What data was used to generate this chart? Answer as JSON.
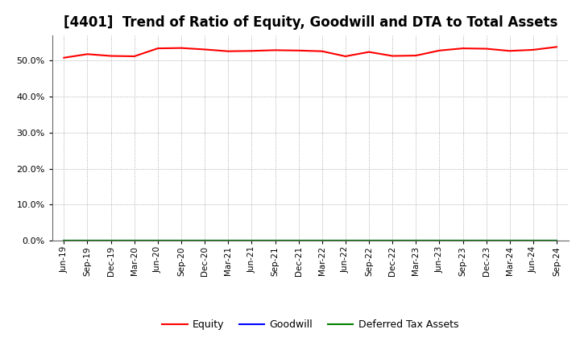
{
  "title": "[4401]  Trend of Ratio of Equity, Goodwill and DTA to Total Assets",
  "x_labels": [
    "Jun-19",
    "Sep-19",
    "Dec-19",
    "Mar-20",
    "Jun-20",
    "Sep-20",
    "Dec-20",
    "Mar-21",
    "Jun-21",
    "Sep-21",
    "Dec-21",
    "Mar-22",
    "Jun-22",
    "Sep-22",
    "Dec-22",
    "Mar-23",
    "Jun-23",
    "Sep-23",
    "Dec-23",
    "Mar-24",
    "Jun-24",
    "Sep-24"
  ],
  "equity": [
    50.8,
    51.8,
    51.3,
    51.2,
    53.4,
    53.5,
    53.1,
    52.6,
    52.7,
    52.9,
    52.8,
    52.6,
    51.2,
    52.4,
    51.3,
    51.4,
    52.8,
    53.4,
    53.3,
    52.7,
    53.0,
    53.8
  ],
  "goodwill": [
    0.0,
    0.0,
    0.0,
    0.0,
    0.0,
    0.0,
    0.0,
    0.0,
    0.0,
    0.0,
    0.0,
    0.0,
    0.0,
    0.0,
    0.0,
    0.0,
    0.0,
    0.0,
    0.0,
    0.0,
    0.0,
    0.0
  ],
  "dta": [
    0.0,
    0.0,
    0.0,
    0.0,
    0.0,
    0.0,
    0.0,
    0.0,
    0.0,
    0.0,
    0.0,
    0.0,
    0.0,
    0.0,
    0.0,
    0.0,
    0.0,
    0.0,
    0.0,
    0.0,
    0.0,
    0.0
  ],
  "equity_color": "#ff0000",
  "goodwill_color": "#0000ff",
  "dta_color": "#008000",
  "ylim": [
    0,
    57
  ],
  "yticks": [
    0.0,
    10.0,
    20.0,
    30.0,
    40.0,
    50.0
  ],
  "background_color": "#ffffff",
  "plot_bg_color": "#ffffff",
  "grid_color": "#999999",
  "title_fontsize": 12,
  "legend_labels": [
    "Equity",
    "Goodwill",
    "Deferred Tax Assets"
  ]
}
